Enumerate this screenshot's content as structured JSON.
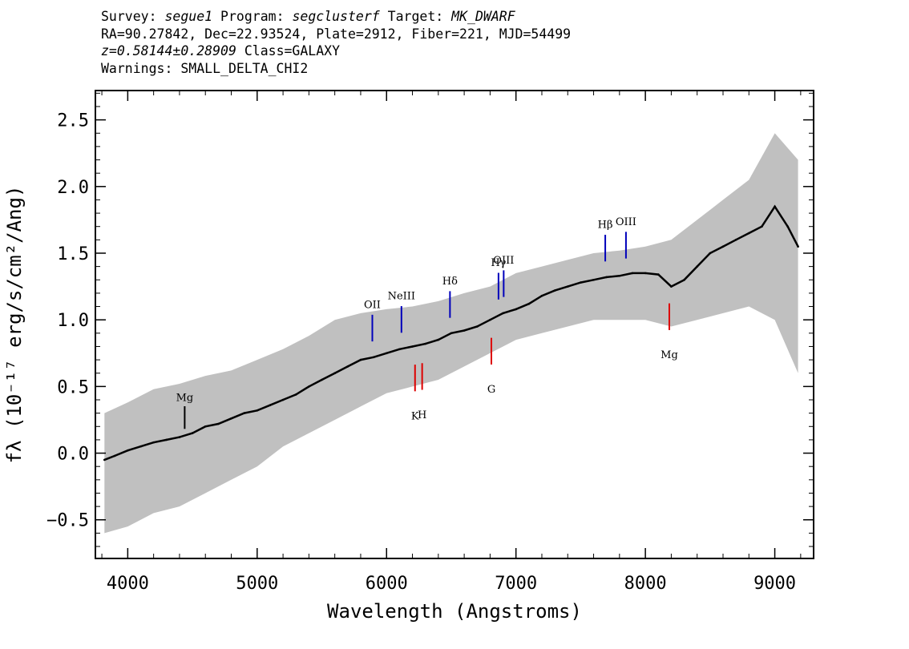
{
  "header": {
    "survey_label": "Survey:",
    "survey": "segue1",
    "program_label": "Program:",
    "program": "segclusterf",
    "target_label": "Target:",
    "target": "MK_DWARF",
    "line2": "RA=90.27842, Dec=22.93524, Plate=2912, Fiber=221, MJD=54499",
    "redshift": "z=0.58144±0.28909",
    "class_text": "Class=GALAXY",
    "warnings": "Warnings: SMALL_DELTA_CHI2"
  },
  "chart_data": {
    "type": "line",
    "xlabel": "Wavelength (Angstroms)",
    "ylabel": "fλ (10⁻¹⁷ erg/s/cm²/Ang)",
    "xlim": [
      3750,
      9300
    ],
    "ylim": [
      -0.79,
      2.72
    ],
    "x_ticks": [
      4000,
      5000,
      6000,
      7000,
      8000,
      9000
    ],
    "y_ticks": [
      -0.5,
      0.0,
      0.5,
      1.0,
      1.5,
      2.0,
      2.5
    ],
    "y_tick_labels": [
      "−0.5",
      "0.0",
      "0.5",
      "1.0",
      "1.5",
      "2.0",
      "2.5"
    ],
    "grid": false,
    "series": [
      {
        "role": "error-band",
        "color": "#c0c0c0",
        "x": [
          3820,
          4000,
          4200,
          4400,
          4600,
          4800,
          5000,
          5200,
          5400,
          5600,
          5800,
          6000,
          6200,
          6400,
          6600,
          6800,
          7000,
          7200,
          7400,
          7600,
          7800,
          8000,
          8200,
          8400,
          8600,
          8800,
          9000,
          9180
        ],
        "y": [
          0.3,
          0.38,
          0.48,
          0.52,
          0.58,
          0.62,
          0.7,
          0.78,
          0.88,
          1.0,
          1.05,
          1.08,
          1.1,
          1.14,
          1.2,
          1.25,
          1.35,
          1.4,
          1.45,
          1.5,
          1.52,
          1.55,
          1.6,
          1.75,
          1.9,
          2.05,
          2.4,
          2.2
        ],
        "y_low": [
          -0.6,
          -0.55,
          -0.45,
          -0.4,
          -0.3,
          -0.2,
          -0.1,
          0.05,
          0.15,
          0.25,
          0.35,
          0.45,
          0.5,
          0.55,
          0.65,
          0.75,
          0.85,
          0.9,
          0.95,
          1.0,
          1.0,
          1.0,
          0.95,
          1.0,
          1.05,
          1.1,
          1.0,
          0.6
        ]
      },
      {
        "role": "flux",
        "color": "#000000",
        "x": [
          3820,
          3900,
          4000,
          4100,
          4200,
          4300,
          4400,
          4500,
          4600,
          4700,
          4800,
          4900,
          5000,
          5100,
          5200,
          5300,
          5400,
          5500,
          5600,
          5700,
          5800,
          5900,
          6000,
          6100,
          6200,
          6300,
          6400,
          6500,
          6600,
          6700,
          6800,
          6900,
          7000,
          7100,
          7200,
          7300,
          7400,
          7500,
          7600,
          7700,
          7800,
          7900,
          8000,
          8100,
          8200,
          8300,
          8400,
          8500,
          8600,
          8700,
          8800,
          8900,
          9000,
          9100,
          9180
        ],
        "y": [
          -0.05,
          -0.02,
          0.02,
          0.05,
          0.08,
          0.1,
          0.12,
          0.15,
          0.2,
          0.22,
          0.26,
          0.3,
          0.32,
          0.36,
          0.4,
          0.44,
          0.5,
          0.55,
          0.6,
          0.65,
          0.7,
          0.72,
          0.75,
          0.78,
          0.8,
          0.82,
          0.85,
          0.9,
          0.92,
          0.95,
          1.0,
          1.05,
          1.08,
          1.12,
          1.18,
          1.22,
          1.25,
          1.28,
          1.3,
          1.32,
          1.33,
          1.35,
          1.35,
          1.34,
          1.25,
          1.3,
          1.4,
          1.5,
          1.55,
          1.6,
          1.65,
          1.7,
          1.85,
          1.7,
          1.55
        ]
      }
    ],
    "annotations": [
      {
        "label": "Mg",
        "x": 4440,
        "color": "#000000",
        "kind": "absorption-above"
      },
      {
        "label": "OII",
        "x": 5890,
        "color": "#0000bb",
        "kind": "emission"
      },
      {
        "label": "NeIII",
        "x": 6115,
        "color": "#0000bb",
        "kind": "emission"
      },
      {
        "label": "Hδ",
        "x": 6490,
        "color": "#0000bb",
        "kind": "emission"
      },
      {
        "label": "Hγ",
        "x": 6865,
        "color": "#0000bb",
        "kind": "emission"
      },
      {
        "label": "OIII",
        "x": 6905,
        "color": "#0000bb",
        "kind": "emission"
      },
      {
        "label": "Hβ",
        "x": 7690,
        "color": "#0000bb",
        "kind": "emission"
      },
      {
        "label": "OIII",
        "x": 7850,
        "color": "#0000bb",
        "kind": "emission"
      },
      {
        "label": "K",
        "x": 6220,
        "color": "#dd0000",
        "kind": "absorption"
      },
      {
        "label": "H",
        "x": 6275,
        "color": "#dd0000",
        "kind": "absorption"
      },
      {
        "label": "G",
        "x": 6810,
        "color": "#dd0000",
        "kind": "absorption"
      },
      {
        "label": "Mg",
        "x": 8185,
        "color": "#dd0000",
        "kind": "absorption"
      }
    ]
  }
}
